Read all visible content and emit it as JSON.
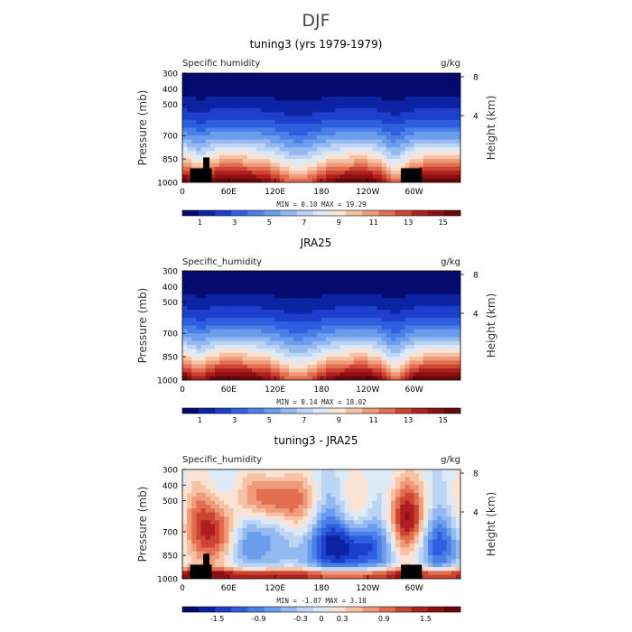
{
  "figure": {
    "title": "DJF",
    "colors": {
      "colormap": [
        "#040a6e",
        "#0c23a4",
        "#1d3fcb",
        "#2d5fe0",
        "#4a7fe8",
        "#6c9cec",
        "#93b9f0",
        "#bcd5f4",
        "#dde9f7",
        "#fbe3d4",
        "#f6c2a5",
        "#ef9b7a",
        "#e26e52",
        "#cc4432",
        "#b01f1f",
        "#8c0f12",
        "#680808"
      ],
      "topography": "#000000"
    }
  },
  "chart_data": [
    {
      "type": "heatmap",
      "title": "tuning3 (yrs 1979-1979)",
      "left_label": "Specific humidity",
      "right_label": "g/kg",
      "xlabel": "",
      "ylabel": "Pressure (mb)",
      "y2label": "Height (km)",
      "x_ticks": [
        "0",
        "60E",
        "120E",
        "180",
        "120W",
        "60W"
      ],
      "x_tick_values": [
        0,
        60,
        120,
        180,
        240,
        300
      ],
      "xlim": [
        0,
        360
      ],
      "y_ticks": [
        "300",
        "400",
        "500",
        "700",
        "850",
        "1000"
      ],
      "y_tick_values": [
        300,
        400,
        500,
        700,
        850,
        1000
      ],
      "ylim": [
        1000,
        300
      ],
      "y2_ticks": [
        "8",
        "4"
      ],
      "y2_tick_values": [
        8,
        4
      ],
      "stats": "MIN =    0.10   MAX =   19.29",
      "min": 0.1,
      "max": 19.29,
      "colorbar_range": [
        0,
        16
      ],
      "colorbar_labels": [
        "1",
        "3",
        "5",
        "7",
        "9",
        "11",
        "13",
        "15"
      ],
      "colorbar_label_values": [
        1,
        3,
        5,
        7,
        9,
        11,
        13,
        15
      ],
      "field": "moist",
      "topography": true
    },
    {
      "type": "heatmap",
      "title": "JRA25",
      "left_label": "Specific_humidity",
      "right_label": "g/kg",
      "xlabel": "",
      "ylabel": "Pressure (mb)",
      "y2label": "Height (km)",
      "x_ticks": [
        "0",
        "60E",
        "120E",
        "180",
        "120W",
        "60W"
      ],
      "x_tick_values": [
        0,
        60,
        120,
        180,
        240,
        300
      ],
      "xlim": [
        0,
        360
      ],
      "y_ticks": [
        "300",
        "400",
        "500",
        "700",
        "850",
        "1000"
      ],
      "y_tick_values": [
        300,
        400,
        500,
        700,
        850,
        1000
      ],
      "ylim": [
        1000,
        300
      ],
      "y2_ticks": [
        "8",
        "4"
      ],
      "y2_tick_values": [
        8,
        4
      ],
      "stats": "MIN =    0.14   MAX =   18.02",
      "min": 0.14,
      "max": 18.02,
      "colorbar_range": [
        0,
        16
      ],
      "colorbar_labels": [
        "1",
        "3",
        "5",
        "7",
        "9",
        "11",
        "13",
        "15"
      ],
      "colorbar_label_values": [
        1,
        3,
        5,
        7,
        9,
        11,
        13,
        15
      ],
      "field": "moist",
      "topography": false
    },
    {
      "type": "heatmap",
      "title": "tuning3 - JRA25",
      "left_label": "Specific_humidity",
      "right_label": "g/kg",
      "xlabel": "",
      "ylabel": "Pressure (mb)",
      "y2label": "Height (km)",
      "x_ticks": [
        "0",
        "60E",
        "120E",
        "180",
        "120W",
        "60W"
      ],
      "x_tick_values": [
        0,
        60,
        120,
        180,
        240,
        300
      ],
      "xlim": [
        0,
        360
      ],
      "y_ticks": [
        "300",
        "400",
        "500",
        "700",
        "850",
        "1000"
      ],
      "y_tick_values": [
        300,
        400,
        500,
        700,
        850,
        1000
      ],
      "ylim": [
        1000,
        300
      ],
      "y2_ticks": [
        "8",
        "4"
      ],
      "y2_tick_values": [
        8,
        4
      ],
      "stats": "MIN =  -1.87   MAX =    3.18",
      "min": -1.87,
      "max": 3.18,
      "colorbar_range": [
        -2.0,
        2.0
      ],
      "colorbar_labels": [
        "-1.5",
        "-0.9",
        "-0.3",
        "0",
        "0.3",
        "0.9",
        "1.5"
      ],
      "colorbar_label_values": [
        -1.5,
        -0.9,
        -0.3,
        0,
        0.3,
        0.9,
        1.5
      ],
      "field": "diff",
      "topography": true
    }
  ]
}
